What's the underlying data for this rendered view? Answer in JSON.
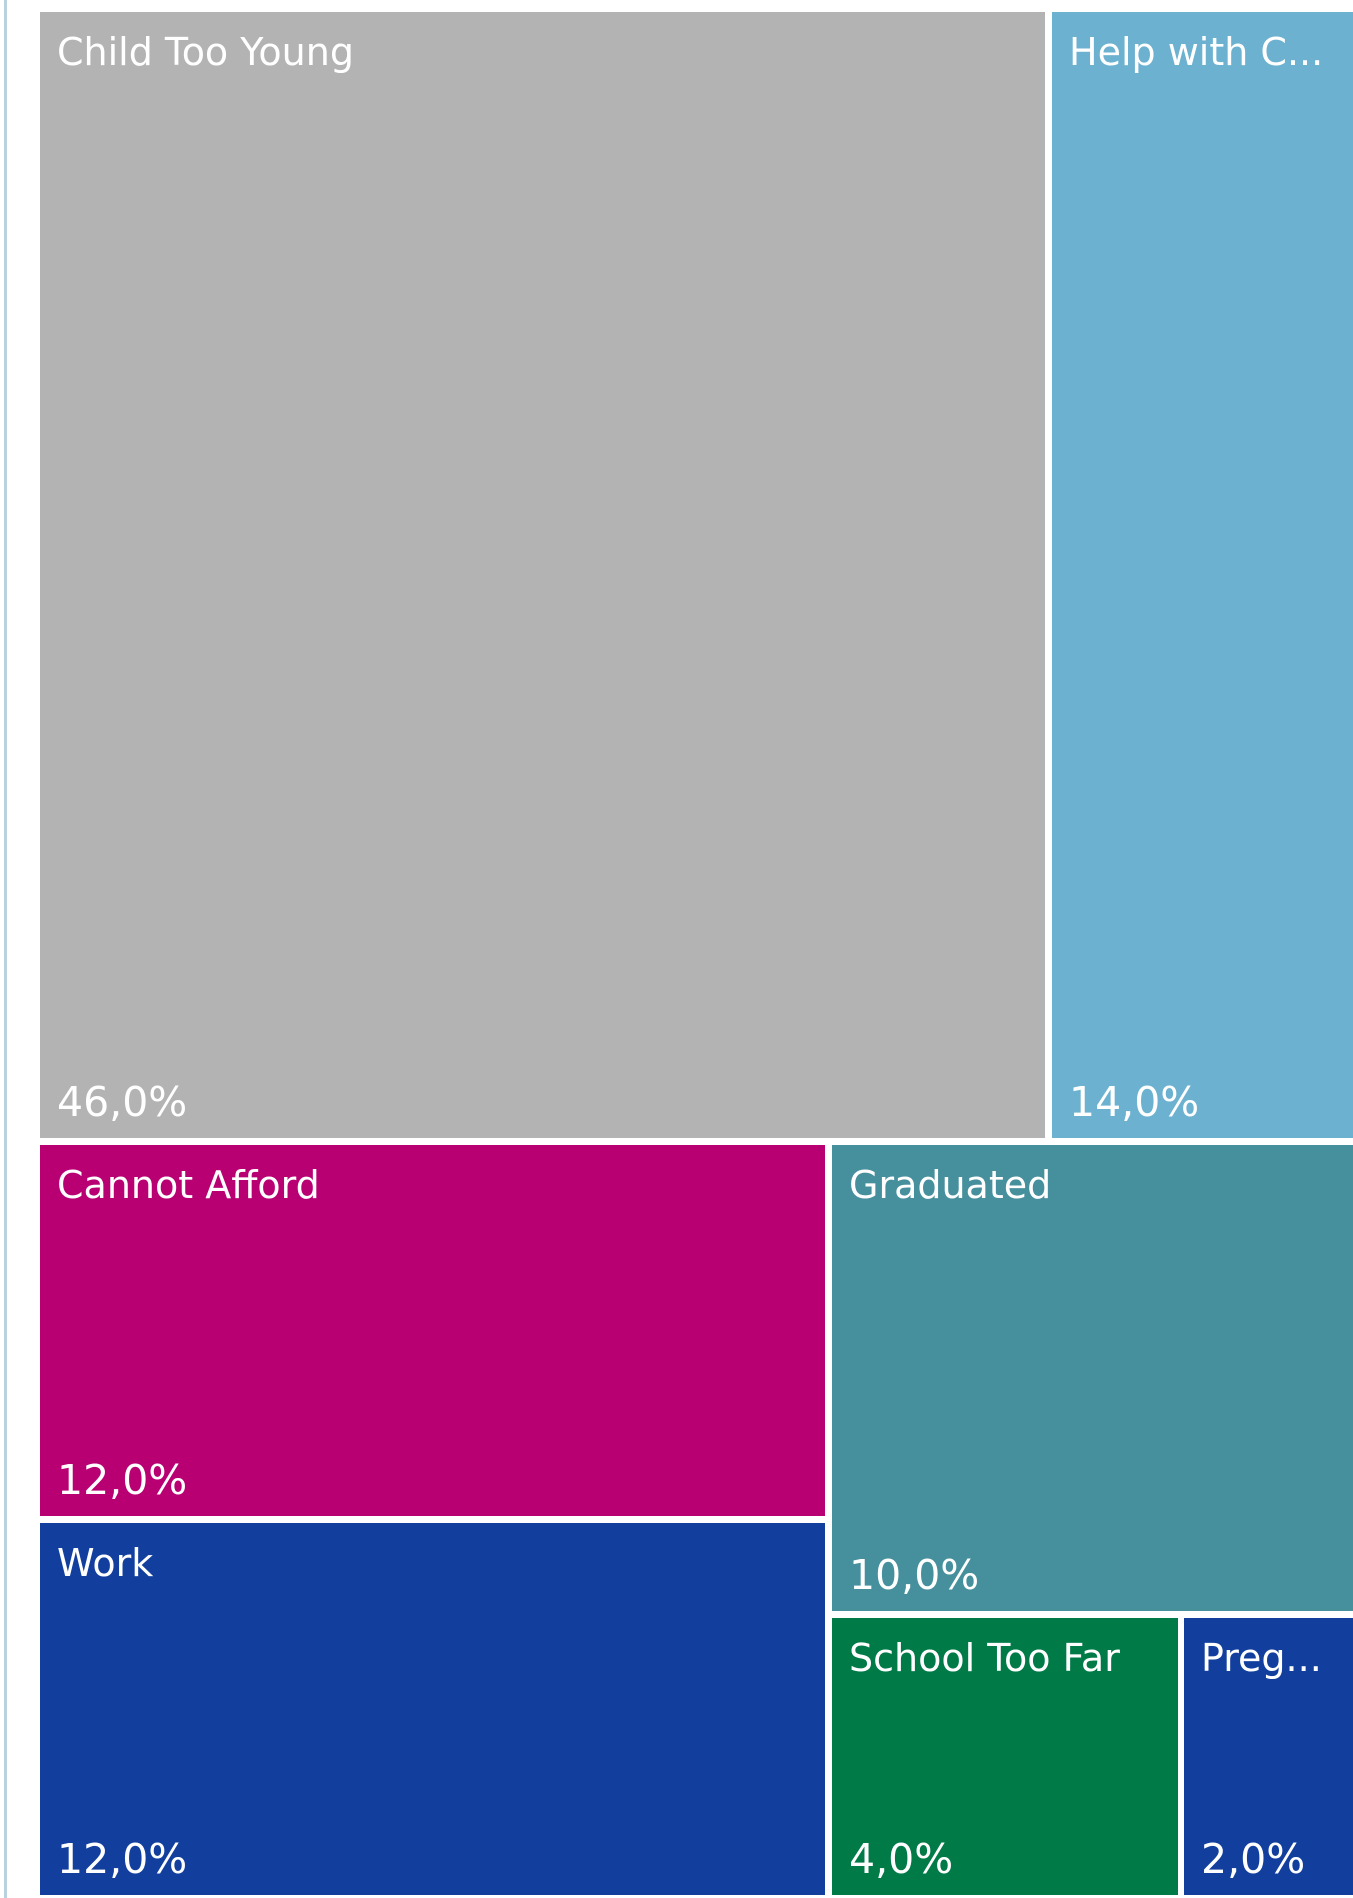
{
  "chart_data": {
    "type": "treemap",
    "value_format": "percent_comma_1dp",
    "items": [
      {
        "label": "Child Too Young",
        "display_label": "Child Too Young",
        "value": 46.0,
        "value_label": "46,0%",
        "color": "#B3B3B3"
      },
      {
        "label": "Help with C...",
        "display_label": "Help with C...",
        "value": 14.0,
        "value_label": "14,0%",
        "color": "#6CB1D0"
      },
      {
        "label": "Cannot Afford",
        "display_label": "Cannot Afford",
        "value": 12.0,
        "value_label": "12,0%",
        "color": "#B80073"
      },
      {
        "label": "Work",
        "display_label": "Work",
        "value": 12.0,
        "value_label": "12,0%",
        "color": "#123F9E"
      },
      {
        "label": "Graduated",
        "display_label": "Graduated",
        "value": 10.0,
        "value_label": "10,0%",
        "color": "#468F9C"
      },
      {
        "label": "School Too Far",
        "display_label": "School Too Far",
        "value": 4.0,
        "value_label": "4,0%",
        "color": "#007A46"
      },
      {
        "label": "Preg...",
        "display_label": "Preg...",
        "value": 2.0,
        "value_label": "2,0%",
        "color": "#123F9E"
      }
    ]
  }
}
